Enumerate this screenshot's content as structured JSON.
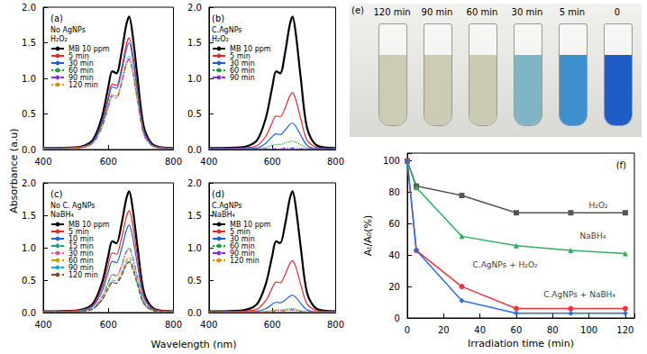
{
  "shared_labels": {
    "x": "Wavelength (nm)",
    "y": "Absorbance (a.u)"
  },
  "photo": {
    "label": "(e)",
    "vials": [
      {
        "label": "120 min",
        "color": "#cdcbb4"
      },
      {
        "label": "90 min",
        "color": "#cdcbb4"
      },
      {
        "label": "60 min",
        "color": "#cbcbb3"
      },
      {
        "label": "30 min",
        "color": "#7fb5c4"
      },
      {
        "label": "5 min",
        "color": "#3d8fd0"
      },
      {
        "label": "0",
        "color": "#1f5cc6"
      }
    ]
  },
  "chart_data": [
    {
      "type": "line",
      "label": "(a)",
      "annotation": [
        "No AgNPs",
        "H₂O₂"
      ],
      "legend": "upper left",
      "grid": false,
      "xlim": [
        400,
        800
      ],
      "xticks": [
        400,
        600,
        800
      ],
      "ylim": [
        0,
        2
      ],
      "yticks": [
        {
          "value": 0,
          "label": "0.0"
        },
        0.5,
        {
          "value": 1,
          "label": "1.0"
        },
        1.5,
        {
          "value": 2,
          "label": "2.0"
        }
      ],
      "x": [
        400,
        500,
        550,
        580,
        600,
        612,
        625,
        640,
        655,
        664,
        675,
        690,
        710,
        740,
        800
      ],
      "series": [
        {
          "name": "MB 10 ppm",
          "color": "#000000",
          "line_style": "solid",
          "values": [
            0.02,
            0.03,
            0.12,
            0.45,
            0.88,
            1.1,
            1.07,
            1.35,
            1.75,
            1.87,
            1.6,
            1.0,
            0.3,
            0.06,
            0.02
          ]
        },
        {
          "name": "5 min",
          "color": "#e8262a",
          "line_style": "solid",
          "values": [
            0.02,
            0.03,
            0.1,
            0.38,
            0.74,
            0.92,
            0.9,
            1.13,
            1.47,
            1.57,
            1.34,
            0.84,
            0.25,
            0.05,
            0.02
          ]
        },
        {
          "name": "30 min",
          "color": "#1f5fd6",
          "line_style": "solid",
          "values": [
            0.02,
            0.02,
            0.1,
            0.36,
            0.7,
            0.88,
            0.86,
            1.08,
            1.4,
            1.5,
            1.28,
            0.8,
            0.24,
            0.05,
            0.02
          ]
        },
        {
          "name": "60 min",
          "color": "#1a9e3a",
          "line_style": "dotted",
          "values": [
            0.01,
            0.02,
            0.08,
            0.32,
            0.62,
            0.77,
            0.75,
            0.95,
            1.23,
            1.31,
            1.12,
            0.7,
            0.21,
            0.04,
            0.01
          ]
        },
        {
          "name": "90 min",
          "color": "#8a2be2",
          "line_style": "dashdot",
          "values": [
            0.01,
            0.02,
            0.08,
            0.31,
            0.6,
            0.75,
            0.73,
            0.92,
            1.19,
            1.27,
            1.09,
            0.68,
            0.2,
            0.04,
            0.01
          ]
        },
        {
          "name": "120 min",
          "color": "#e08a00",
          "line_style": "dotted",
          "values": [
            0.01,
            0.02,
            0.08,
            0.3,
            0.59,
            0.74,
            0.72,
            0.91,
            1.18,
            1.26,
            1.08,
            0.67,
            0.2,
            0.04,
            0.01
          ]
        }
      ]
    },
    {
      "type": "line",
      "label": "(b)",
      "annotation": [
        "C.AgNPs",
        "H₂O₂"
      ],
      "legend": "upper left",
      "grid": false,
      "xlim": [
        400,
        800
      ],
      "xticks": [
        400,
        600,
        800
      ],
      "ylim": [
        0,
        2
      ],
      "yticks": [
        {
          "value": 0,
          "label": "0.0"
        },
        0.5,
        {
          "value": 1,
          "label": "1.0"
        },
        1.5,
        {
          "value": 2,
          "label": "2.0"
        }
      ],
      "x": [
        400,
        500,
        550,
        580,
        600,
        612,
        625,
        640,
        655,
        664,
        675,
        690,
        710,
        740,
        800
      ],
      "series": [
        {
          "name": "MB 10 ppm",
          "color": "#000000",
          "line_style": "solid",
          "values": [
            0.02,
            0.03,
            0.12,
            0.45,
            0.88,
            1.1,
            1.07,
            1.35,
            1.75,
            1.87,
            1.6,
            1.0,
            0.3,
            0.06,
            0.02
          ]
        },
        {
          "name": "5 min",
          "color": "#e8262a",
          "line_style": "solid",
          "values": [
            0.01,
            0.02,
            0.05,
            0.19,
            0.38,
            0.47,
            0.46,
            0.58,
            0.75,
            0.8,
            0.69,
            0.43,
            0.13,
            0.03,
            0.01
          ]
        },
        {
          "name": "30 min",
          "color": "#1f5fd6",
          "line_style": "solid",
          "values": [
            0.01,
            0.01,
            0.02,
            0.09,
            0.18,
            0.22,
            0.21,
            0.27,
            0.35,
            0.37,
            0.32,
            0.2,
            0.06,
            0.01,
            0.01
          ]
        },
        {
          "name": "60 min",
          "color": "#1a9e3a",
          "line_style": "dotted",
          "values": [
            0.01,
            0.01,
            0.01,
            0.03,
            0.06,
            0.07,
            0.07,
            0.09,
            0.11,
            0.12,
            0.1,
            0.07,
            0.02,
            0.01,
            0.01
          ]
        },
        {
          "name": "90 min",
          "color": "#8a2be2",
          "line_style": "dashdot",
          "values": [
            0.01,
            0.01,
            0.01,
            0.01,
            0.01,
            0.01,
            0.01,
            0.02,
            0.02,
            0.02,
            0.02,
            0.01,
            0.01,
            0.01,
            0.01
          ]
        }
      ]
    },
    {
      "type": "line",
      "label": "(c)",
      "annotation": [
        "No C. AgNPs",
        "NaBH₄"
      ],
      "legend": "upper left",
      "grid": false,
      "xlim": [
        400,
        800
      ],
      "xticks": [
        400,
        600,
        800
      ],
      "ylim": [
        0,
        2
      ],
      "yticks": [
        {
          "value": 0,
          "label": "0.0"
        },
        0.5,
        {
          "value": 1,
          "label": "1.0"
        },
        1.5,
        {
          "value": 2,
          "label": "2.0"
        }
      ],
      "x": [
        400,
        500,
        550,
        580,
        600,
        612,
        625,
        640,
        655,
        664,
        675,
        690,
        710,
        740,
        800
      ],
      "series": [
        {
          "name": "MB 10 ppm",
          "color": "#000000",
          "line_style": "solid",
          "values": [
            0.02,
            0.03,
            0.12,
            0.45,
            0.88,
            1.1,
            1.07,
            1.35,
            1.75,
            1.87,
            1.6,
            1.0,
            0.3,
            0.06,
            0.02
          ]
        },
        {
          "name": "5 min",
          "color": "#e8262a",
          "line_style": "solid",
          "values": [
            0.02,
            0.03,
            0.1,
            0.38,
            0.74,
            0.92,
            0.9,
            1.13,
            1.47,
            1.57,
            1.34,
            0.84,
            0.25,
            0.05,
            0.02
          ]
        },
        {
          "name": "10 min",
          "color": "#1f5fd6",
          "line_style": "solid",
          "values": [
            0.01,
            0.02,
            0.09,
            0.32,
            0.63,
            0.79,
            0.77,
            0.97,
            1.26,
            1.35,
            1.15,
            0.72,
            0.22,
            0.04,
            0.01
          ]
        },
        {
          "name": "15 min",
          "color": "#1a9e7a",
          "line_style": "dashdot",
          "values": [
            0.01,
            0.02,
            0.06,
            0.24,
            0.47,
            0.59,
            0.57,
            0.72,
            0.94,
            1.0,
            0.86,
            0.54,
            0.16,
            0.03,
            0.01
          ]
        },
        {
          "name": "30 min",
          "color": "#e0559f",
          "line_style": "dotted",
          "values": [
            0.01,
            0.02,
            0.06,
            0.24,
            0.46,
            0.58,
            0.56,
            0.71,
            0.92,
            0.98,
            0.84,
            0.52,
            0.16,
            0.03,
            0.01
          ]
        },
        {
          "name": "60 min",
          "color": "#c8a000",
          "line_style": "dashed",
          "values": [
            0.01,
            0.01,
            0.05,
            0.2,
            0.4,
            0.5,
            0.49,
            0.61,
            0.8,
            0.85,
            0.73,
            0.46,
            0.14,
            0.03,
            0.01
          ]
        },
        {
          "name": "90 min",
          "color": "#17a9c9",
          "line_style": "dashdot",
          "values": [
            0.01,
            0.02,
            0.05,
            0.19,
            0.38,
            0.47,
            0.46,
            0.58,
            0.75,
            0.8,
            0.69,
            0.43,
            0.13,
            0.03,
            0.01
          ]
        },
        {
          "name": "120 min",
          "color": "#7a4a2a",
          "line_style": "dashed",
          "values": [
            0.01,
            0.01,
            0.05,
            0.19,
            0.37,
            0.46,
            0.45,
            0.56,
            0.73,
            0.78,
            0.67,
            0.42,
            0.13,
            0.03,
            0.01
          ]
        }
      ]
    },
    {
      "type": "line",
      "label": "(d)",
      "annotation": [
        "C.AgNPs",
        "NaBH₄"
      ],
      "legend": "upper left",
      "grid": false,
      "xlim": [
        400,
        800
      ],
      "xticks": [
        400,
        600,
        800
      ],
      "ylim": [
        0,
        2
      ],
      "yticks": [
        {
          "value": 0,
          "label": "0.0"
        },
        0.5,
        {
          "value": 1,
          "label": "1.0"
        },
        1.5,
        {
          "value": 2,
          "label": "2.0"
        }
      ],
      "x": [
        400,
        500,
        550,
        580,
        600,
        612,
        625,
        640,
        655,
        664,
        675,
        690,
        710,
        740,
        800
      ],
      "series": [
        {
          "name": "MB 10 ppm",
          "color": "#000000",
          "line_style": "solid",
          "values": [
            0.02,
            0.03,
            0.12,
            0.45,
            0.88,
            1.1,
            1.07,
            1.35,
            1.75,
            1.87,
            1.6,
            1.0,
            0.3,
            0.06,
            0.02
          ]
        },
        {
          "name": "5 min",
          "color": "#e8262a",
          "line_style": "solid",
          "values": [
            0.01,
            0.02,
            0.05,
            0.19,
            0.38,
            0.47,
            0.46,
            0.58,
            0.75,
            0.8,
            0.69,
            0.43,
            0.13,
            0.03,
            0.01
          ]
        },
        {
          "name": "30 min",
          "color": "#1f5fd6",
          "line_style": "solid",
          "values": [
            0.01,
            0.01,
            0.02,
            0.06,
            0.13,
            0.16,
            0.15,
            0.19,
            0.25,
            0.27,
            0.23,
            0.14,
            0.04,
            0.01,
            0.01
          ]
        },
        {
          "name": "60 min",
          "color": "#1a9e3a",
          "line_style": "dotted",
          "values": [
            0.01,
            0.01,
            0.01,
            0.02,
            0.03,
            0.04,
            0.04,
            0.05,
            0.06,
            0.06,
            0.05,
            0.03,
            0.01,
            0.01,
            0.01
          ]
        },
        {
          "name": "90 min",
          "color": "#8a2be2",
          "line_style": "dashdot",
          "values": [
            0.01,
            0.01,
            0.01,
            0.01,
            0.02,
            0.03,
            0.03,
            0.03,
            0.04,
            0.04,
            0.03,
            0.02,
            0.01,
            0.01,
            0.01
          ]
        },
        {
          "name": "120 min",
          "color": "#e08a00",
          "line_style": "dotted",
          "values": [
            0.01,
            0.01,
            0.01,
            0.01,
            0.02,
            0.03,
            0.03,
            0.03,
            0.04,
            0.04,
            0.03,
            0.02,
            0.01,
            0.01,
            0.01
          ]
        }
      ]
    },
    {
      "type": "line",
      "label": "(f)",
      "grid": false,
      "xlabel": "Irradiation time (min)",
      "ylabel": "Aₜ/A₀(%)",
      "xlim": [
        0,
        125
      ],
      "xticks": [
        0,
        20,
        40,
        60,
        80,
        100,
        120
      ],
      "ylim": [
        0,
        105
      ],
      "yticks": [
        0,
        20,
        40,
        60,
        80,
        100
      ],
      "x": [
        0,
        5,
        30,
        60,
        90,
        120
      ],
      "series": [
        {
          "name": "H₂O₂",
          "color": "#555555",
          "marker": "square",
          "line_style": "solid",
          "values": [
            100,
            84,
            78,
            67,
            67,
            67
          ]
        },
        {
          "name": "NaBH₄",
          "color": "#2fae5f",
          "marker": "triangle",
          "line_style": "solid",
          "values": [
            100,
            83,
            52,
            46,
            43,
            41
          ]
        },
        {
          "name": "C.AgNPs + H₂O₂",
          "color": "#e8383d",
          "marker": "circle",
          "line_style": "solid",
          "values": [
            100,
            43,
            20,
            6,
            6,
            6
          ]
        },
        {
          "name": "C.AgNPs + NaBH₄",
          "color": "#2f6fd6",
          "marker": "diamond",
          "line_style": "solid",
          "values": [
            100,
            43,
            11,
            3,
            3,
            3
          ]
        }
      ],
      "annotations": [
        {
          "text": "H₂O₂",
          "x": 100,
          "y": 72
        },
        {
          "text": "NaBH₄",
          "x": 95,
          "y": 52
        },
        {
          "text": "C.AgNPs + H₂O₂",
          "x": 36,
          "y": 34
        },
        {
          "text": "C.AgNPs + NaBH₄",
          "x": 75,
          "y": 15
        }
      ]
    }
  ]
}
